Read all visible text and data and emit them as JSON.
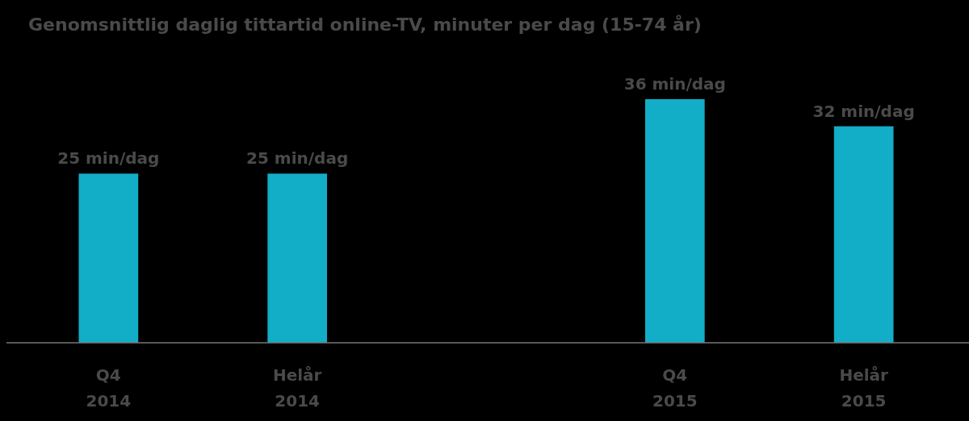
{
  "chart_data": {
    "type": "bar",
    "title": "Genomsnittlig daglig tittartid online-TV, minuter per dag (15-74 år)",
    "categories": [
      "Q4\n2014",
      "Helår\n2014",
      null,
      "Q4\n2015",
      "Helår\n2015"
    ],
    "values": [
      25,
      25,
      null,
      36,
      32
    ],
    "value_labels": [
      "25 min/dag",
      "25 min/dag",
      null,
      "36 min/dag",
      "32 min/dag"
    ],
    "color": "#12adc7"
  }
}
